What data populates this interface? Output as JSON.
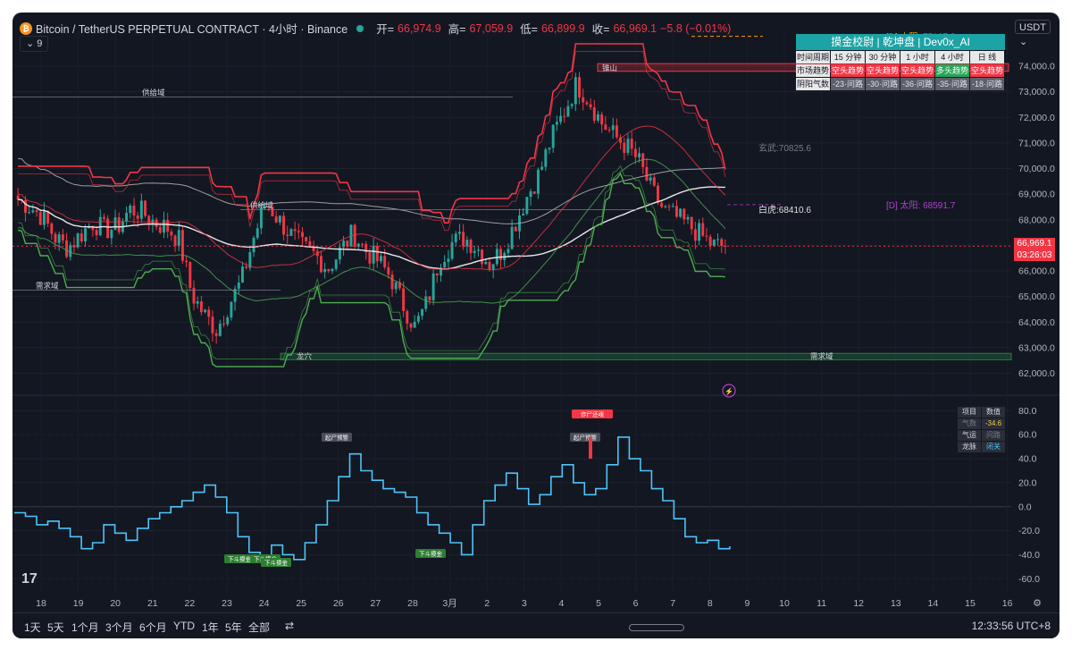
{
  "header": {
    "symbol": "Bitcoin / TetherUS PERPETUAL CONTRACT · 4小时 · Binance",
    "open_label": "开=",
    "open": "66,974.9",
    "high_label": "高=",
    "high": "67,059.9",
    "low_label": "低=",
    "low": "66,899.9",
    "close_label": "收=",
    "close": "66,969.1",
    "change": "−5.8 (−0.01%)",
    "indicator_count": "9",
    "currency": "USDT"
  },
  "table": {
    "title": "摸金校尉 | 乾坤盘 | Dev0x_AI",
    "columns": [
      "时间周期",
      "15 分钟",
      "30 分钟",
      "1 小时",
      "4 小时",
      "日 线"
    ],
    "rows": [
      {
        "label": "市场趋势",
        "cells": [
          {
            "text": "空头趋势",
            "style": "red"
          },
          {
            "text": "空头趋势",
            "style": "red"
          },
          {
            "text": "空头趋势",
            "style": "red"
          },
          {
            "text": "多头趋势",
            "style": "green"
          },
          {
            "text": "空头趋势",
            "style": "red"
          }
        ]
      },
      {
        "label": "阴阳气数",
        "cells": [
          {
            "text": "-23·问路",
            "style": "gray"
          },
          {
            "text": "-30·问路",
            "style": "gray"
          },
          {
            "text": "-36·问路",
            "style": "gray"
          },
          {
            "text": "-35·问路",
            "style": "gray"
          },
          {
            "text": "-18·问路",
            "style": "gray"
          }
        ]
      }
    ]
  },
  "osc_table": {
    "headers": [
      "项目",
      "数值"
    ],
    "rows": [
      [
        "气数",
        "-34.6"
      ],
      [
        "气运",
        "问路"
      ],
      [
        "龙脉",
        "闭关"
      ]
    ]
  },
  "price_badge": {
    "price": "66,969.1",
    "countdown": "03:26:03"
  },
  "labels": {
    "sun_d1": "[D] 太阳: 75167.8",
    "sun_d2": "[D] 太阳: 68591.7",
    "xuanwu": "玄武:70825.6",
    "baihu": "白虎:68410.6",
    "zhushan": "锥山",
    "supply1": "供给域",
    "supply2": "供给域",
    "demand1": "需求域",
    "demand2": "需求域",
    "longxue": "龙穴",
    "zhazhi": "诈尸还魂",
    "qishi1": "起尸预警",
    "qishi2": "起尸预警",
    "xiadou1": "下斗摸金",
    "xiadou2": "下斗摸金",
    "xiadou3": "下斗摸金",
    "xiadou4": "下斗摸金"
  },
  "bottom": {
    "ranges": [
      "1天",
      "5天",
      "1个月",
      "3个月",
      "6个月",
      "YTD",
      "1年",
      "5年",
      "全部"
    ],
    "time": "12:33:56 UTC+8"
  },
  "colors": {
    "up": "#26a69a",
    "down": "#f23645",
    "background": "#131722",
    "osc": "#4fc3f7",
    "accent": "#1ba3a6"
  },
  "chart_data": [
    {
      "type": "candlestick",
      "title": "Bitcoin / TetherUS PERPETUAL CONTRACT · 4小时 · Binance",
      "x_tick_labels": [
        "18",
        "19",
        "20",
        "21",
        "22",
        "23",
        "24",
        "25",
        "26",
        "27",
        "28",
        "3月",
        "2",
        "3",
        "4",
        "5",
        "6",
        "7",
        "8",
        "9",
        "10",
        "11",
        "12",
        "13",
        "14",
        "15",
        "16"
      ],
      "y_tick_labels": [
        "62,000.0",
        "63,000.0",
        "64,000.0",
        "65,000.0",
        "66,000.0",
        "67,000.0",
        "68,000.0",
        "69,000.0",
        "70,000.0",
        "71,000.0",
        "72,000.0",
        "73,000.0",
        "74,000.0"
      ],
      "ylim": [
        61600,
        74700
      ],
      "close_path": [
        68800,
        68500,
        68100,
        67300,
        66900,
        67400,
        67900,
        67600,
        67700,
        68400,
        68300,
        67900,
        67700,
        67200,
        65100,
        64300,
        63700,
        64700,
        65600,
        67300,
        68700,
        68000,
        67400,
        66900,
        66600,
        66100,
        66800,
        67500,
        66800,
        66400,
        65800,
        64700,
        63800,
        64800,
        66500,
        67100,
        67300,
        66900,
        66300,
        66800,
        67800,
        68900,
        69800,
        71200,
        72200,
        73300,
        72700,
        71800,
        71300,
        70900,
        70300,
        69200,
        68400,
        68100,
        67800,
        67400,
        67000,
        66969.1
      ],
      "final_close": 66969.1
    },
    {
      "type": "line",
      "y_tick_labels": [
        "-60.0",
        "-40.0",
        "-20.0",
        "0.0",
        "20.0",
        "40.0",
        "60.0",
        "80.0"
      ],
      "ylim": [
        -65,
        84
      ],
      "series": [
        {
          "values": [
            -5,
            -8,
            -15,
            -12,
            -18,
            -25,
            -35,
            -30,
            -15,
            -22,
            -28,
            -18,
            -10,
            -5,
            0,
            5,
            12,
            18,
            8,
            -5,
            -25,
            -38,
            -42,
            -32,
            -40,
            -44,
            -30,
            -15,
            5,
            25,
            44,
            30,
            22,
            15,
            12,
            8,
            -5,
            -15,
            -22,
            -30,
            -40,
            -15,
            5,
            18,
            28,
            15,
            2,
            10,
            25,
            35,
            20,
            10,
            15,
            35,
            58,
            40,
            30,
            15,
            5,
            -10,
            -25,
            -30,
            -28,
            -35,
            -33
          ]
        }
      ]
    }
  ]
}
